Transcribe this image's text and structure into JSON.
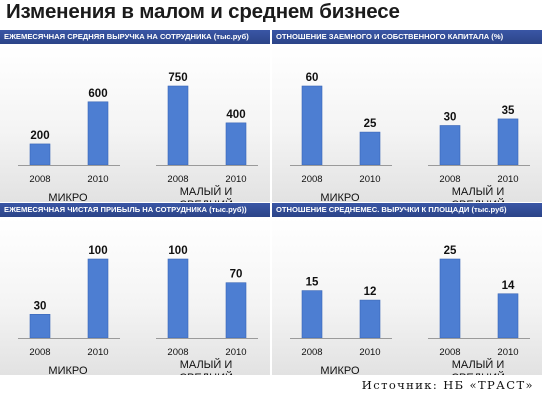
{
  "title": "Изменения в малом и среднем бизнесе",
  "source": "Источник: НБ «ТРАСТ»",
  "colors": {
    "bar": "#4d7ed2",
    "bar_edge": "#3a66b6",
    "header": "#2f4a93"
  },
  "panels": [
    {
      "header": "ЕЖЕМЕСЯЧНАЯ СРЕДНЯЯ ВЫРУЧКА НА СОТРУДНИКА (тыс.руб)",
      "chart_index": [
        0,
        1
      ]
    },
    {
      "header": "ОТНОШЕНИЕ ЗАЕМНОГО И СОБСТВЕННОГО КАПИТАЛА (%)",
      "chart_index": [
        2,
        3
      ]
    },
    {
      "header": "ЕЖЕМЕСЯЧНАЯ ЧИСТАЯ ПРИБЫЛЬ НА СОТРУДНИКА (тыс.руб))",
      "chart_index": [
        4,
        5
      ]
    },
    {
      "header": "ОТНОШЕНИЕ СРЕДНЕМЕС. ВЫРУЧКИ К ПЛОЩАДИ (тыс.руб)",
      "chart_index": [
        6,
        7
      ]
    }
  ],
  "chart_data": [
    {
      "type": "bar",
      "categories": [
        "2008",
        "2010"
      ],
      "values": [
        200,
        600
      ],
      "xlabel": "МИКРО",
      "ylim": [
        0,
        750
      ]
    },
    {
      "type": "bar",
      "categories": [
        "2008",
        "2010"
      ],
      "values": [
        750,
        400
      ],
      "xlabel": "МАЛЫЙ И СРЕДНИЙ",
      "xlabel_lines": [
        "МАЛЫЙ И",
        "СРЕДНИЙ"
      ],
      "ylim": [
        0,
        750
      ]
    },
    {
      "type": "bar",
      "categories": [
        "2008",
        "2010"
      ],
      "values": [
        60,
        25
      ],
      "xlabel": "МИКРО",
      "ylim": [
        0,
        60
      ]
    },
    {
      "type": "bar",
      "categories": [
        "2008",
        "2010"
      ],
      "values": [
        30,
        35
      ],
      "xlabel": "МАЛЫЙ И СРЕДНИЙ",
      "xlabel_lines": [
        "МАЛЫЙ И",
        "СРЕДНИЙ"
      ],
      "ylim": [
        0,
        60
      ]
    },
    {
      "type": "bar",
      "categories": [
        "2008",
        "2010"
      ],
      "values": [
        30,
        100
      ],
      "xlabel": "МИКРО",
      "ylim": [
        0,
        100
      ]
    },
    {
      "type": "bar",
      "categories": [
        "2008",
        "2010"
      ],
      "values": [
        100,
        70
      ],
      "xlabel": "МАЛЫЙ И СРЕДНИЙ",
      "xlabel_lines": [
        "МАЛЫЙ И",
        "СРЕДНИЙ"
      ],
      "ylim": [
        0,
        100
      ]
    },
    {
      "type": "bar",
      "categories": [
        "2008",
        "2010"
      ],
      "values": [
        15,
        12
      ],
      "xlabel": "МИКРО",
      "ylim": [
        0,
        25
      ]
    },
    {
      "type": "bar",
      "categories": [
        "2008",
        "2010"
      ],
      "values": [
        25,
        14
      ],
      "xlabel": "МАЛЫЙ И СРЕДНИЙ",
      "xlabel_lines": [
        "МАЛЫЙ И",
        "СРЕДНИЙ"
      ],
      "ylim": [
        0,
        25
      ]
    }
  ]
}
